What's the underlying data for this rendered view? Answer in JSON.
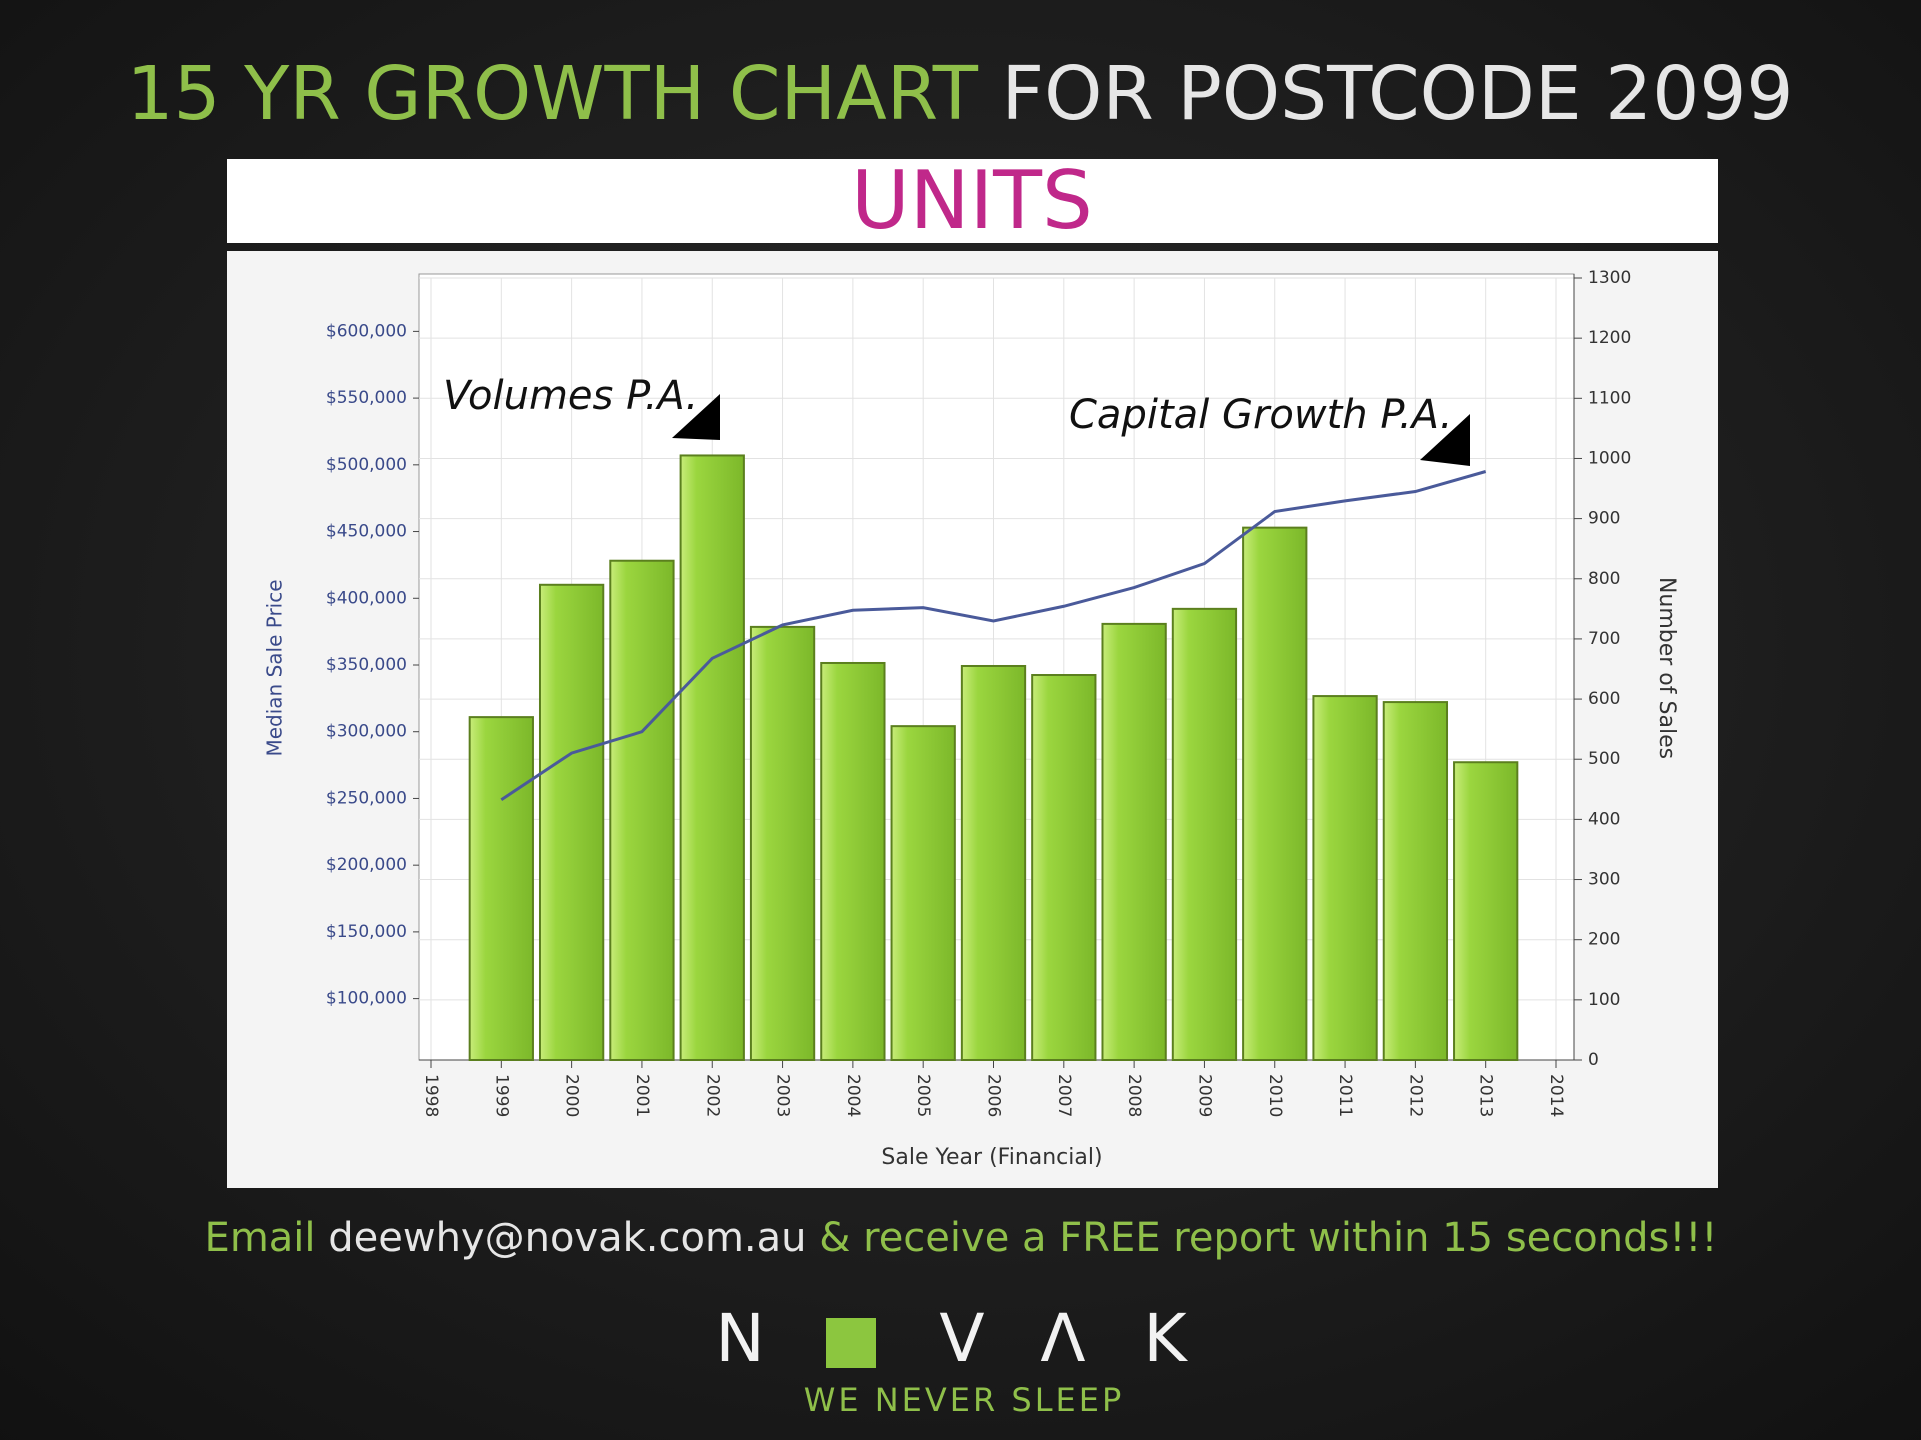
{
  "slide": {
    "title_part1": "15 YR GROWTH CHART",
    "title_part2": "FOR POSTCODE 2099",
    "banner": "UNITS",
    "footer_part1": "Email",
    "footer_part2": "deewhy@novak.com.au",
    "footer_part3": "& receive a FREE report within 15 seconds!!!",
    "logo_letters": [
      "N",
      "V",
      "Λ",
      "K"
    ],
    "tagline": "WE NEVER SLEEP"
  },
  "chart_data": {
    "type": "bar",
    "x_label": "Sale Year (Financial)",
    "y_label": "Median Sale Price",
    "y2_label": "Number of Sales",
    "annotations": [
      "Volumes P.A.",
      "Capital Growth P.A."
    ],
    "x": [
      1999,
      2000,
      2001,
      2002,
      2003,
      2004,
      2005,
      2006,
      2007,
      2008,
      2009,
      2010,
      2011,
      2012,
      2013
    ],
    "series": [
      {
        "type": "bar",
        "axis": "y2",
        "color": "#8cc63f",
        "values": [
          570,
          790,
          830,
          1005,
          720,
          660,
          555,
          655,
          640,
          725,
          750,
          885,
          605,
          595,
          495
        ]
      },
      {
        "type": "line",
        "color": "#4a5a9a",
        "values": [
          249000,
          284000,
          300000,
          355000,
          380000,
          391000,
          393000,
          383000,
          394000,
          408000,
          426000,
          465000,
          473000,
          480000,
          495000
        ]
      }
    ],
    "xlim": [
      1998,
      2014
    ],
    "xticks": [
      1998,
      1999,
      2000,
      2001,
      2002,
      2003,
      2004,
      2005,
      2006,
      2007,
      2008,
      2009,
      2010,
      2011,
      2012,
      2013,
      2014
    ],
    "ylim": [
      54000,
      640000
    ],
    "yticks": [
      {
        "value": 100000,
        "label": "$100,000"
      },
      {
        "value": 150000,
        "label": "$150,000"
      },
      {
        "value": 200000,
        "label": "$200,000"
      },
      {
        "value": 250000,
        "label": "$250,000"
      },
      {
        "value": 300000,
        "label": "$300,000"
      },
      {
        "value": 350000,
        "label": "$350,000"
      },
      {
        "value": 400000,
        "label": "$400,000"
      },
      {
        "value": 450000,
        "label": "$450,000"
      },
      {
        "value": 500000,
        "label": "$500,000"
      },
      {
        "value": 550000,
        "label": "$550,000"
      },
      {
        "value": 600000,
        "label": "$600,000"
      }
    ],
    "y2lim": [
      0,
      1300
    ],
    "y2ticks": [
      0,
      100,
      200,
      300,
      400,
      500,
      600,
      700,
      800,
      900,
      1000,
      1100,
      1200,
      1300
    ],
    "grid": true
  }
}
